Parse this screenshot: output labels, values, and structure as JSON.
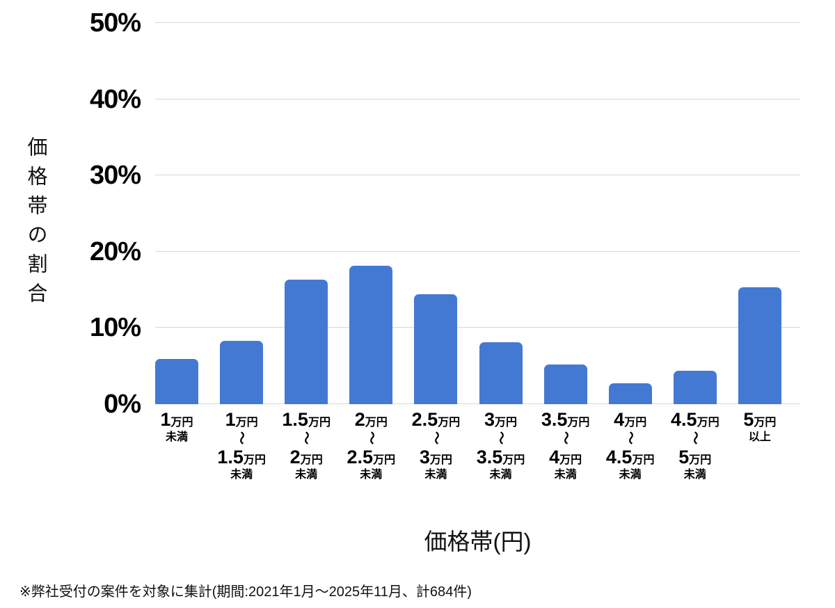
{
  "chart_data": {
    "type": "bar",
    "title": "",
    "xlabel": "価格帯(円)",
    "ylabel": "価格帯の割合",
    "ylim": [
      0,
      50
    ],
    "grid": true,
    "legend": "none",
    "bar_color": "#4379d3",
    "gridline_color": "#d6d6d6",
    "y_ticks": [
      "0%",
      "10%",
      "20%",
      "30%",
      "40%",
      "50%"
    ],
    "categories": [
      "1万円未満",
      "1万円〜1.5万円未満",
      "1.5万円〜2万円未満",
      "2万円〜2.5万円未満",
      "2.5万円〜3万円未満",
      "3万円〜3.5万円未満",
      "3.5万円〜4万円未満",
      "4万円〜4.5万円未満",
      "4.5万円〜5万円未満",
      "5万円以上"
    ],
    "category_parts": [
      {
        "from_num": "1",
        "from_unit": "万円",
        "tilde": "",
        "to_num": "",
        "to_unit": "",
        "suffix": "未満"
      },
      {
        "from_num": "1",
        "from_unit": "万円",
        "tilde": "〜",
        "to_num": "1.5",
        "to_unit": "万円",
        "suffix": "未満"
      },
      {
        "from_num": "1.5",
        "from_unit": "万円",
        "tilde": "〜",
        "to_num": "2",
        "to_unit": "万円",
        "suffix": "未満"
      },
      {
        "from_num": "2",
        "from_unit": "万円",
        "tilde": "〜",
        "to_num": "2.5",
        "to_unit": "万円",
        "suffix": "未満"
      },
      {
        "from_num": "2.5",
        "from_unit": "万円",
        "tilde": "〜",
        "to_num": "3",
        "to_unit": "万円",
        "suffix": "未満"
      },
      {
        "from_num": "3",
        "from_unit": "万円",
        "tilde": "〜",
        "to_num": "3.5",
        "to_unit": "万円",
        "suffix": "未満"
      },
      {
        "from_num": "3.5",
        "from_unit": "万円",
        "tilde": "〜",
        "to_num": "4",
        "to_unit": "万円",
        "suffix": "未満"
      },
      {
        "from_num": "4",
        "from_unit": "万円",
        "tilde": "〜",
        "to_num": "4.5",
        "to_unit": "万円",
        "suffix": "未満"
      },
      {
        "from_num": "4.5",
        "from_unit": "万円",
        "tilde": "〜",
        "to_num": "5",
        "to_unit": "万円",
        "suffix": "未満"
      },
      {
        "from_num": "5",
        "from_unit": "万円",
        "tilde": "",
        "to_num": "",
        "to_unit": "",
        "suffix": "以上"
      }
    ],
    "values": [
      5.9,
      8.3,
      16.3,
      18.2,
      14.4,
      8.1,
      5.2,
      2.7,
      4.4,
      15.3
    ]
  },
  "footnote": "※弊社受付の案件を対象に集計(期間:2021年1月〜2025年11月、計684件)"
}
